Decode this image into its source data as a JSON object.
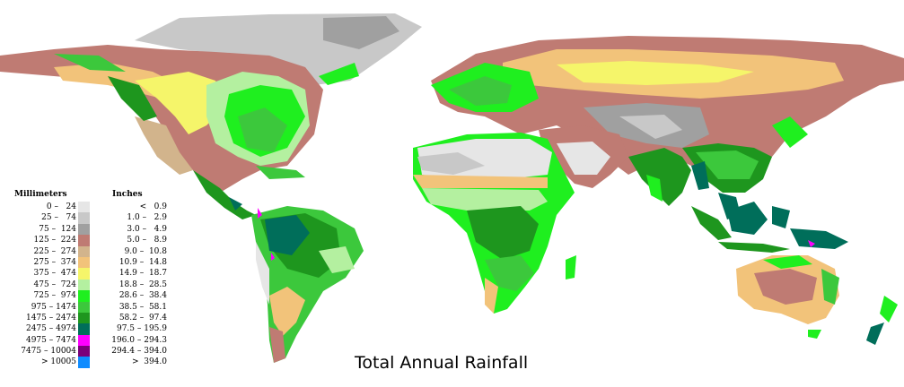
{
  "title": "Total Annual Rainfall",
  "legend": {
    "mm_header": "Millimeters",
    "in_header": "Inches",
    "rows": [
      {
        "mm": "0 –   24",
        "in": "<   0.9",
        "color": "#e6e6e6"
      },
      {
        "mm": "25 –   74",
        "in": "1.0 –   2.9",
        "color": "#c8c8c8"
      },
      {
        "mm": "75 –  124",
        "in": "3.0 –   4.9",
        "color": "#a0a0a0"
      },
      {
        "mm": "125 –  224",
        "in": "5.0 –   8.9",
        "color": "#bf7b73"
      },
      {
        "mm": "225 –  274",
        "in": "9.0 –  10.8",
        "color": "#d2b48c"
      },
      {
        "mm": "275 –  374",
        "in": "10.9 –  14.8",
        "color": "#f2c37a"
      },
      {
        "mm": "375 –  474",
        "in": "14.9 –  18.7",
        "color": "#f5f56a"
      },
      {
        "mm": "475 –  724",
        "in": "18.8 –  28.5",
        "color": "#b4f0a0"
      },
      {
        "mm": "725 –  974",
        "in": "28.6 –  38.4",
        "color": "#1fef1f"
      },
      {
        "mm": "975 – 1474",
        "in": "38.5 –  58.1",
        "color": "#3cc83c"
      },
      {
        "mm": "1475 – 2474",
        "in": "58.2 –  97.4",
        "color": "#1e961e"
      },
      {
        "mm": "2475 – 4974",
        "in": "97.5 – 195.9",
        "color": "#006e5a"
      },
      {
        "mm": "4975 – 7474",
        "in": "196.0 – 294.3",
        "color": "#ff00ff"
      },
      {
        "mm": "7475 – 10004",
        "in": "294.4 – 394.0",
        "color": "#7a007a"
      },
      {
        "mm": "> 10005",
        "in": ">  394.0",
        "color": "#0f8cff"
      }
    ]
  }
}
